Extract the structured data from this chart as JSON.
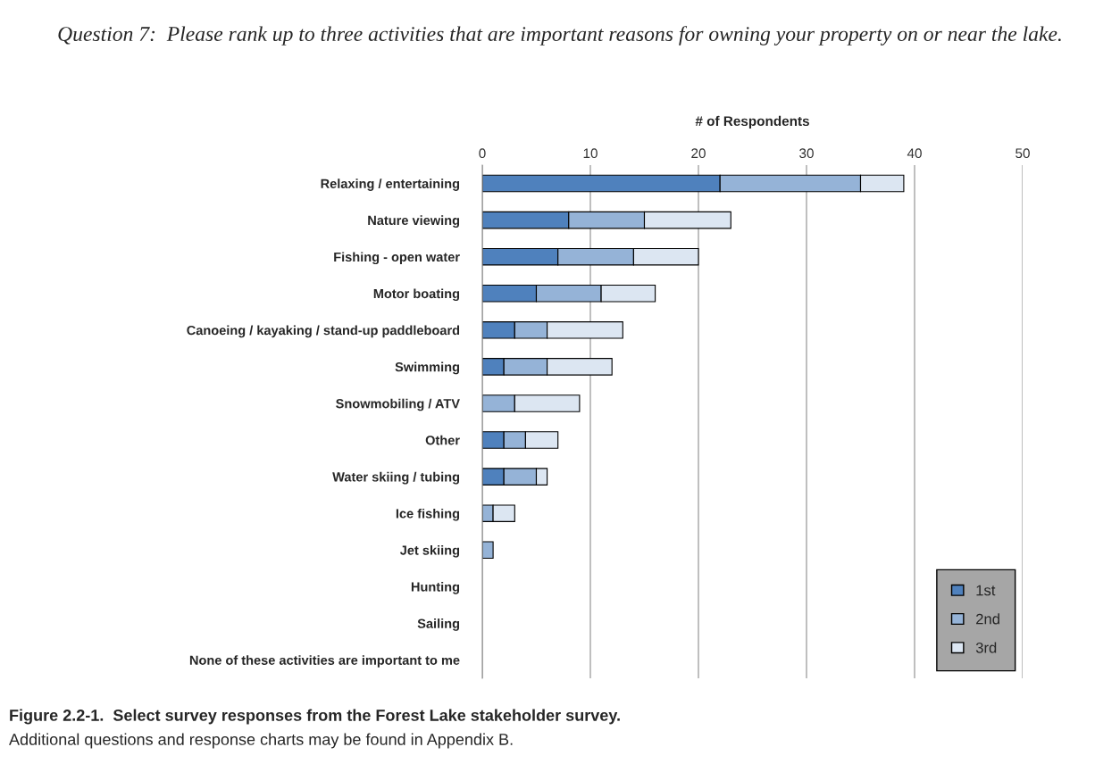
{
  "chart_data": {
    "type": "bar",
    "orientation": "horizontal",
    "stacked": true,
    "title": "Question 7:  Please rank up to three activities that are important reasons for owning your property on or near the lake.",
    "xlabel": "# of Respondents",
    "categories": [
      "Relaxing / entertaining",
      "Nature viewing",
      "Fishing - open water",
      "Motor boating",
      "Canoeing / kayaking / stand-up paddleboard",
      "Swimming",
      "Snowmobiling / ATV",
      "Other",
      "Water skiing / tubing",
      "Ice fishing",
      "Jet skiing",
      "Hunting",
      "Sailing",
      "None of these activities are important to me"
    ],
    "series": [
      {
        "name": "1st",
        "color": "#4f81bd",
        "values": [
          22,
          8,
          7,
          5,
          3,
          2,
          0,
          2,
          2,
          0,
          0,
          0,
          0,
          0
        ]
      },
      {
        "name": "2nd",
        "color": "#95b3d7",
        "values": [
          13,
          7,
          7,
          6,
          3,
          4,
          3,
          2,
          3,
          1,
          1,
          0,
          0,
          0
        ]
      },
      {
        "name": "3rd",
        "color": "#dce6f2",
        "values": [
          4,
          8,
          6,
          5,
          7,
          6,
          6,
          3,
          1,
          2,
          0,
          0,
          0,
          0
        ]
      }
    ],
    "xlim": [
      0,
      50
    ],
    "xticks": [
      0,
      10,
      20,
      30,
      40,
      50
    ],
    "grid": "x",
    "legend": "bottom right",
    "annotations": [
      "Figure 2.2-1.  Select survey responses from the Forest Lake stakeholder survey.",
      "Additional questions and response charts may be found in Appendix B."
    ]
  }
}
